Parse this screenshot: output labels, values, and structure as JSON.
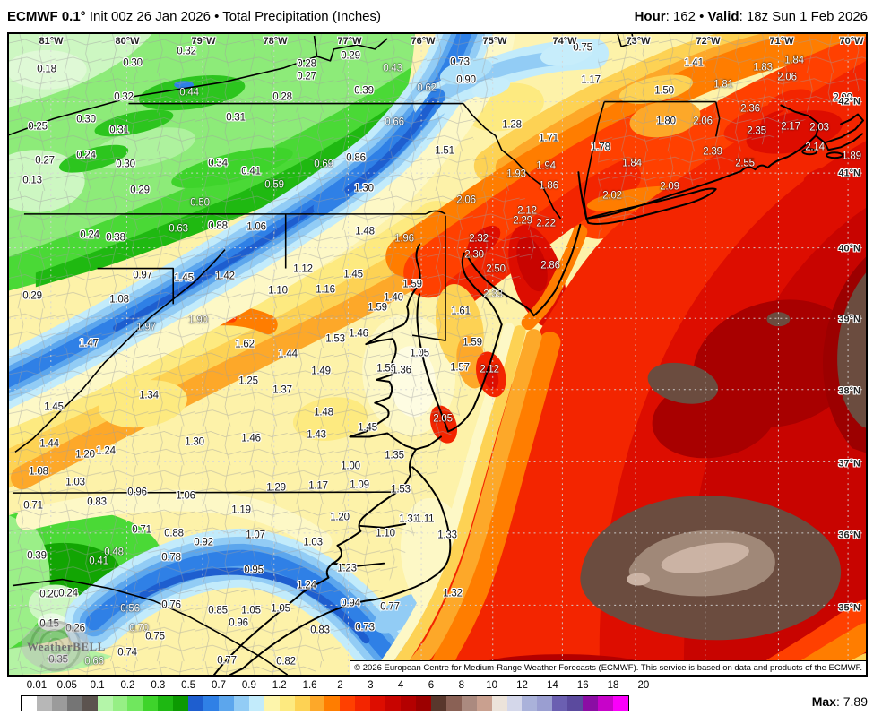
{
  "header": {
    "left_bold": "ECMWF 0.1°",
    "left_rest": " Init 00z 26 Jan 2026 • Total Precipitation (Inches)",
    "right_bold1": "Hour",
    "right_mid1": ": 162 • ",
    "right_bold2": "Valid",
    "right_rest": ": 18z Sun 1 Feb 2026"
  },
  "map": {
    "lon_labels": [
      [
        "81°W",
        47
      ],
      [
        "80°W",
        132
      ],
      [
        "79°W",
        217
      ],
      [
        "78°W",
        297
      ],
      [
        "77°W",
        380
      ],
      [
        "76°W",
        462
      ],
      [
        "75°W",
        542
      ],
      [
        "74°W",
        620
      ],
      [
        "73°W",
        702
      ],
      [
        "72°W",
        780
      ],
      [
        "71°W",
        862
      ],
      [
        "70°W",
        940
      ]
    ],
    "lat_labels": [
      [
        "42°N",
        76
      ],
      [
        "41°N",
        156
      ],
      [
        "40°N",
        240
      ],
      [
        "39°N",
        319
      ],
      [
        "38°N",
        399
      ],
      [
        "37°N",
        480
      ],
      [
        "36°N",
        560
      ],
      [
        "35°N",
        641
      ]
    ],
    "values": [
      [
        "0.18",
        42,
        40,
        "d"
      ],
      [
        "0.32",
        198,
        20,
        "d"
      ],
      [
        "0.30",
        138,
        33,
        "d"
      ],
      [
        "0.32",
        128,
        71,
        "d"
      ],
      [
        "0.44",
        201,
        66,
        "w"
      ],
      [
        "0.28",
        305,
        71,
        "d"
      ],
      [
        "0.28",
        332,
        34,
        "d"
      ],
      [
        "0.27",
        332,
        48,
        "d"
      ],
      [
        "0.25",
        32,
        104,
        "d"
      ],
      [
        "0.30",
        86,
        96,
        "d"
      ],
      [
        "0.31",
        123,
        108,
        "d"
      ],
      [
        "0.31",
        253,
        94,
        "d"
      ],
      [
        "0.27",
        40,
        142,
        "d"
      ],
      [
        "0.24",
        86,
        136,
        "d"
      ],
      [
        "0.30",
        130,
        146,
        "d"
      ],
      [
        "0.34",
        233,
        145,
        "d"
      ],
      [
        "0.41",
        270,
        154,
        "d"
      ],
      [
        "0.59",
        296,
        169,
        "w"
      ],
      [
        "0.13",
        26,
        164,
        "d"
      ],
      [
        "0.29",
        146,
        175,
        "d"
      ],
      [
        "0.50",
        213,
        189,
        "w"
      ],
      [
        "0.63",
        189,
        218,
        "w"
      ],
      [
        "0.88",
        233,
        215,
        "d"
      ],
      [
        "1.06",
        276,
        216,
        "d"
      ],
      [
        "0.24",
        90,
        225,
        "d"
      ],
      [
        "0.38",
        119,
        228,
        "d"
      ],
      [
        "0.29",
        381,
        25,
        "d"
      ],
      [
        "0.43",
        428,
        39,
        "w"
      ],
      [
        "0.39",
        396,
        64,
        "d"
      ],
      [
        "0.73",
        503,
        32,
        "d"
      ],
      [
        "0.62",
        466,
        61,
        "w"
      ],
      [
        "0.90",
        510,
        52,
        "d"
      ],
      [
        "0.75",
        640,
        16,
        "d"
      ],
      [
        "1.17",
        649,
        52,
        "d"
      ],
      [
        "0.66",
        430,
        99,
        "w"
      ],
      [
        "1.28",
        561,
        102,
        "d"
      ],
      [
        "1.71",
        602,
        117,
        "d"
      ],
      [
        "0.86",
        387,
        139,
        "d"
      ],
      [
        "0.69",
        351,
        146,
        "w"
      ],
      [
        "1.51",
        486,
        131,
        "d"
      ],
      [
        "1.93",
        566,
        157,
        "w"
      ],
      [
        "1.94",
        599,
        148,
        "w"
      ],
      [
        "1.86",
        602,
        170,
        "w"
      ],
      [
        "1.30",
        396,
        173,
        "d"
      ],
      [
        "2.06",
        510,
        186,
        "w"
      ],
      [
        "2.12",
        578,
        198,
        "w"
      ],
      [
        "2.29",
        573,
        209,
        "w"
      ],
      [
        "2.22",
        599,
        212,
        "w"
      ],
      [
        "1.48",
        397,
        221,
        "d"
      ],
      [
        "1.96",
        441,
        229,
        "w"
      ],
      [
        "2.32",
        524,
        229,
        "w"
      ],
      [
        "1.41",
        764,
        33,
        "d"
      ],
      [
        "1.84",
        876,
        30,
        "w"
      ],
      [
        "1.83",
        841,
        38,
        "w"
      ],
      [
        "2.06",
        868,
        49,
        "w"
      ],
      [
        "1.81",
        797,
        57,
        "w"
      ],
      [
        "1.50",
        731,
        64,
        "d"
      ],
      [
        "2.09",
        930,
        72,
        "d"
      ],
      [
        "2.36",
        827,
        84,
        "w"
      ],
      [
        "1.80",
        733,
        98,
        "d"
      ],
      [
        "2.06",
        774,
        98,
        "w"
      ],
      [
        "2.17",
        872,
        104,
        "w"
      ],
      [
        "2.03",
        904,
        105,
        "w"
      ],
      [
        "2.35",
        834,
        109,
        "w"
      ],
      [
        "1.78",
        660,
        127,
        "d"
      ],
      [
        "2.39",
        785,
        132,
        "w"
      ],
      [
        "2.14",
        899,
        127,
        "w"
      ],
      [
        "1.89",
        940,
        137,
        "w"
      ],
      [
        "1.84",
        695,
        145,
        "w"
      ],
      [
        "2.55",
        821,
        145,
        "w"
      ],
      [
        "2.09",
        737,
        171,
        "w"
      ],
      [
        "2.02",
        673,
        181,
        "w"
      ],
      [
        "0.29",
        26,
        293,
        "d"
      ],
      [
        "0.97",
        149,
        270,
        "d"
      ],
      [
        "1.45",
        195,
        273,
        "d"
      ],
      [
        "1.42",
        241,
        271,
        "d"
      ],
      [
        "1.10",
        300,
        287,
        "d"
      ],
      [
        "1.08",
        123,
        297,
        "d"
      ],
      [
        "1.90",
        211,
        320,
        "w"
      ],
      [
        "1.97",
        153,
        328,
        "w"
      ],
      [
        "1.47",
        89,
        346,
        "d"
      ],
      [
        "1.62",
        263,
        347,
        "d"
      ],
      [
        "1.44",
        311,
        358,
        "d"
      ],
      [
        "1.25",
        267,
        388,
        "d"
      ],
      [
        "1.37",
        305,
        398,
        "d"
      ],
      [
        "1.34",
        156,
        404,
        "d"
      ],
      [
        "1.45",
        50,
        417,
        "d"
      ],
      [
        "1.44",
        45,
        458,
        "d"
      ],
      [
        "1.30",
        207,
        456,
        "d"
      ],
      [
        "1.46",
        270,
        452,
        "d"
      ],
      [
        "1.20",
        85,
        470,
        "d"
      ],
      [
        "1.24",
        108,
        466,
        "d"
      ],
      [
        "2.30",
        519,
        247,
        "w"
      ],
      [
        "2.50",
        543,
        263,
        "w"
      ],
      [
        "2.86",
        604,
        259,
        "w"
      ],
      [
        "2.33",
        540,
        291,
        "w"
      ],
      [
        "1.12",
        328,
        263,
        "d"
      ],
      [
        "1.45",
        384,
        269,
        "d"
      ],
      [
        "1.16",
        353,
        286,
        "d"
      ],
      [
        "1.59",
        450,
        280,
        "d"
      ],
      [
        "1.40",
        429,
        295,
        "d"
      ],
      [
        "1.59",
        411,
        306,
        "d"
      ],
      [
        "1.61",
        504,
        310,
        "d"
      ],
      [
        "1.46",
        390,
        335,
        "d"
      ],
      [
        "1.53",
        364,
        341,
        "d"
      ],
      [
        "1.59",
        517,
        345,
        "d"
      ],
      [
        "1.05",
        458,
        357,
        "d"
      ],
      [
        "1.49",
        348,
        377,
        "d"
      ],
      [
        "1.59",
        421,
        374,
        "d"
      ],
      [
        "1.36",
        438,
        376,
        "d"
      ],
      [
        "1.57",
        503,
        373,
        "d"
      ],
      [
        "2.12",
        536,
        375,
        "w"
      ],
      [
        "2.05",
        484,
        430,
        "w"
      ],
      [
        "1.48",
        351,
        423,
        "d"
      ],
      [
        "1.45",
        400,
        440,
        "d"
      ],
      [
        "1.43",
        343,
        448,
        "d"
      ],
      [
        "1.35",
        430,
        471,
        "d"
      ],
      [
        "1.00",
        381,
        483,
        "d"
      ],
      [
        "1.08",
        33,
        489,
        "d"
      ],
      [
        "1.03",
        74,
        501,
        "d"
      ],
      [
        "0.96",
        143,
        512,
        "d"
      ],
      [
        "1.06",
        197,
        516,
        "d"
      ],
      [
        "1.29",
        298,
        507,
        "d"
      ],
      [
        "0.71",
        27,
        527,
        "d"
      ],
      [
        "0.83",
        98,
        523,
        "d"
      ],
      [
        "1.19",
        259,
        532,
        "d"
      ],
      [
        "0.71",
        148,
        554,
        "d"
      ],
      [
        "0.88",
        184,
        558,
        "d"
      ],
      [
        "0.92",
        217,
        568,
        "d"
      ],
      [
        "1.07",
        275,
        560,
        "d"
      ],
      [
        "0.39",
        31,
        583,
        "d"
      ],
      [
        "0.48",
        117,
        579,
        "w"
      ],
      [
        "0.41",
        100,
        589,
        "w"
      ],
      [
        "0.78",
        181,
        585,
        "d"
      ],
      [
        "0.95",
        273,
        599,
        "d"
      ],
      [
        "0.20",
        45,
        626,
        "d"
      ],
      [
        "0.24",
        66,
        625,
        "d"
      ],
      [
        "0.56",
        135,
        642,
        "w"
      ],
      [
        "0.76",
        181,
        638,
        "d"
      ],
      [
        "0.85",
        233,
        644,
        "d"
      ],
      [
        "1.05",
        270,
        644,
        "d"
      ],
      [
        "1.05",
        303,
        642,
        "d"
      ],
      [
        "0.15",
        45,
        659,
        "d"
      ],
      [
        "0.26",
        74,
        664,
        "d"
      ],
      [
        "0.70",
        145,
        664,
        "w"
      ],
      [
        "0.75",
        163,
        673,
        "d"
      ],
      [
        "0.96",
        256,
        658,
        "d"
      ],
      [
        "0.35",
        55,
        699,
        "d"
      ],
      [
        "0.66",
        95,
        701,
        "w"
      ],
      [
        "0.74",
        132,
        691,
        "d"
      ],
      [
        "0.77",
        243,
        700,
        "d"
      ],
      [
        "0.82",
        309,
        701,
        "d"
      ],
      [
        "1.17",
        345,
        505,
        "d"
      ],
      [
        "1.09",
        391,
        504,
        "d"
      ],
      [
        "1.53",
        437,
        509,
        "d"
      ],
      [
        "1.20",
        369,
        540,
        "d"
      ],
      [
        "1.31",
        446,
        542,
        "d"
      ],
      [
        "1.11",
        464,
        542,
        "d"
      ],
      [
        "1.03",
        339,
        568,
        "d"
      ],
      [
        "1.10",
        420,
        558,
        "d"
      ],
      [
        "1.33",
        489,
        560,
        "d"
      ],
      [
        "1.23",
        377,
        597,
        "d"
      ],
      [
        "1.24",
        332,
        616,
        "d"
      ],
      [
        "1.32",
        495,
        625,
        "d"
      ],
      [
        "0.94",
        381,
        636,
        "d"
      ],
      [
        "0.77",
        425,
        640,
        "d"
      ],
      [
        "0.83",
        347,
        666,
        "d"
      ],
      [
        "0.73",
        397,
        663,
        "d"
      ]
    ],
    "watermark": "WeatherBELL",
    "copyright": "© 2026 European Centre for Medium-Range Weather Forecasts (ECMWF). This service is based on data and products of the ECMWF."
  },
  "legend": {
    "ticks": [
      "0.01",
      "0.05",
      "0.1",
      "0.2",
      "0.3",
      "0.5",
      "0.7",
      "0.9",
      "1.2",
      "1.6",
      "2",
      "3",
      "4",
      "6",
      "8",
      "10",
      "12",
      "14",
      "16",
      "18",
      "20"
    ],
    "colors": [
      "#ffffff",
      "#b7b7b7",
      "#9b9b9b",
      "#757575",
      "#5c534f",
      "#b4f5a9",
      "#96ef85",
      "#70e75e",
      "#3ed42b",
      "#1eb812",
      "#0c9a02",
      "#1e5ecf",
      "#2f80e6",
      "#5ca6ed",
      "#92ccf5",
      "#c2ebfb",
      "#fdf5ab",
      "#fdea80",
      "#fdd254",
      "#fda829",
      "#ff7d00",
      "#ff4000",
      "#f32500",
      "#dd0d00",
      "#c80400",
      "#b40000",
      "#9c0000",
      "#59372c",
      "#8a6155",
      "#ab8a7f",
      "#c9a08f",
      "#ece3da",
      "#d4d7ea",
      "#aab2da",
      "#9a9ed1",
      "#6b5fb1",
      "#5b4a9e",
      "#8b0da4",
      "#c703c9",
      "#fa00fa"
    ],
    "max_label": "Max",
    "max_value": ": 7.89"
  }
}
